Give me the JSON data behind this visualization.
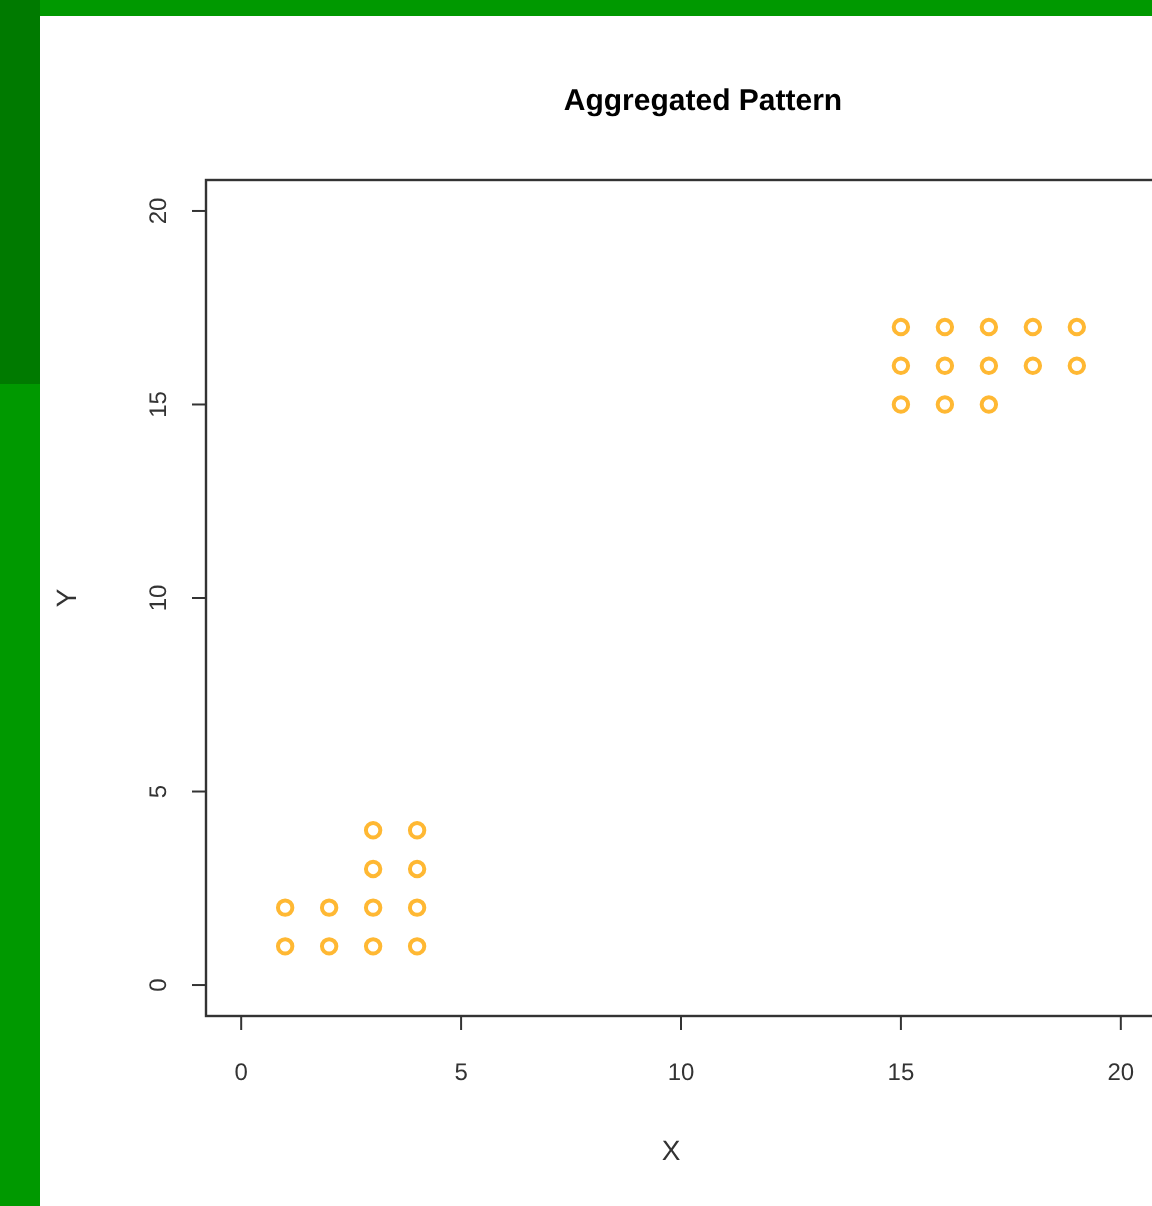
{
  "chart_data": {
    "type": "scatter",
    "title": "Aggregated Pattern",
    "xlabel": "X",
    "ylabel": "Y",
    "x": [
      1,
      1,
      2,
      2,
      3,
      3,
      3,
      3,
      4,
      4,
      4,
      4,
      15,
      15,
      15,
      16,
      16,
      16,
      17,
      17,
      17,
      18,
      18,
      19,
      19
    ],
    "values": [
      1,
      2,
      1,
      2,
      1,
      2,
      3,
      4,
      1,
      2,
      3,
      4,
      15,
      16,
      17,
      15,
      16,
      17,
      15,
      16,
      17,
      16,
      17,
      16,
      17
    ],
    "color": "#ffb833",
    "marker": "circle",
    "grid": false,
    "xlim": [
      -0.8,
      20.8
    ],
    "ylim": [
      -0.8,
      20.8
    ],
    "xticks": [
      0,
      5,
      10,
      15,
      20
    ],
    "yticks": [
      0,
      5,
      10,
      15,
      20
    ]
  }
}
